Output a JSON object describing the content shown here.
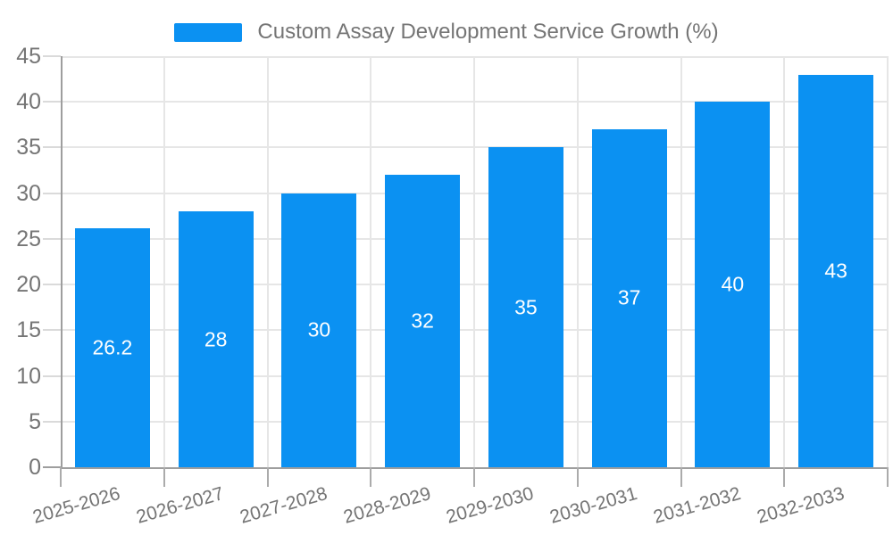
{
  "legend": {
    "label": "Custom Assay Development Service Growth (%)"
  },
  "chart_data": {
    "type": "bar",
    "title": "Custom Assay Development Service Growth (%)",
    "categories": [
      "2025-2026",
      "2026-2027",
      "2027-2028",
      "2028-2029",
      "2029-2030",
      "2030-2031",
      "2031-2032",
      "2032-2033"
    ],
    "values": [
      26.2,
      28,
      30,
      32,
      35,
      37,
      40,
      43
    ],
    "bar_labels": [
      "26.2",
      "28",
      "30",
      "32",
      "35",
      "37",
      "40",
      "43"
    ],
    "xlabel": "",
    "ylabel": "",
    "ylim": [
      0,
      45
    ],
    "yticks": [
      0,
      5,
      10,
      15,
      20,
      25,
      30,
      35,
      40,
      45
    ],
    "grid": true,
    "legend_position": "top",
    "bar_color": "#0b91f2",
    "bar_label_color": "#ffffff",
    "axis_color": "#9e9e9e",
    "grid_color": "#e6e6e6",
    "text_color": "#757575"
  }
}
